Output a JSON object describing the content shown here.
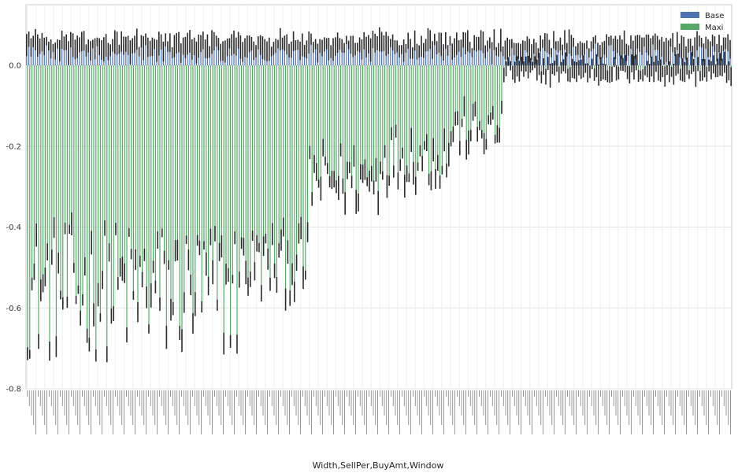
{
  "chart_data": {
    "type": "bar",
    "xlabel": "Width,SellPer,BuyAmt,Window",
    "ylabel": "",
    "ylim": [
      -0.8,
      0.15
    ],
    "yticks": [
      0.0,
      -0.2,
      -0.4,
      -0.6,
      -0.8
    ],
    "ytick_labels": [
      "0.0",
      "-0.2",
      "-0.4",
      "-0.6",
      "-0.8"
    ],
    "grid": true,
    "legend_position": "top-right",
    "error_bars": true,
    "series": [
      {
        "name": "Base",
        "color": "#4c72b0"
      },
      {
        "name": "Maxi",
        "color": "#55a868"
      }
    ],
    "category_count": 320,
    "base": {
      "mean_range": [
        0.03,
        0.065
      ],
      "error_range": [
        0.01,
        0.03
      ]
    },
    "maxi": {
      "first_block_categories": 96,
      "first_block_range": [
        -0.72,
        -0.39
      ],
      "groups_after_first_block": [
        {
          "count": 32,
          "range": [
            -0.58,
            -0.4
          ]
        },
        {
          "count": 32,
          "range": [
            -0.36,
            -0.2
          ]
        },
        {
          "count": 32,
          "range": [
            -0.3,
            -0.15
          ]
        },
        {
          "count": 24,
          "range": [
            -0.22,
            -0.1
          ]
        },
        {
          "count": 104,
          "range": [
            -0.03,
            0.01
          ]
        }
      ],
      "error_range": [
        0.01,
        0.03
      ]
    },
    "legend": {
      "items": [
        {
          "label": "Base",
          "color": "#4c72b0"
        },
        {
          "label": "Maxi",
          "color": "#55a868"
        }
      ]
    }
  }
}
